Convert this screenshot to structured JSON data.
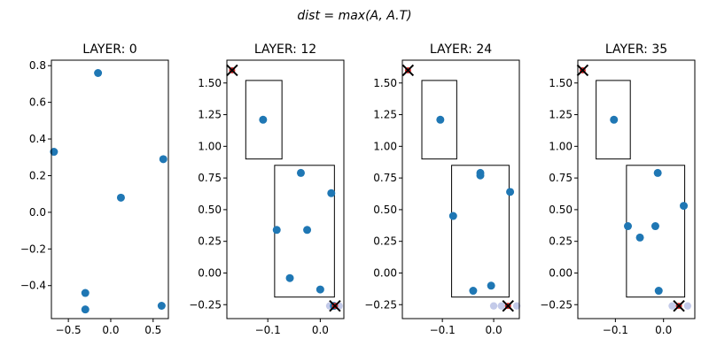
{
  "suptitle": "dist = max(A, A.T)",
  "chart_data": [
    {
      "type": "scatter",
      "title": "LAYER: 0",
      "xlim": [
        -0.7,
        0.68
      ],
      "ylim": [
        -0.58,
        0.83
      ],
      "xticks": [
        -0.5,
        0.0,
        0.5
      ],
      "yticks": [
        -0.4,
        -0.2,
        0.0,
        0.2,
        0.4,
        0.6,
        0.8
      ],
      "xtick_labels": [
        "−0.5",
        "0.0",
        "0.5"
      ],
      "ytick_labels": [
        "−0.4",
        "−0.2",
        "0.0",
        "0.2",
        "0.4",
        "0.6",
        "0.8"
      ],
      "points": [
        [
          -0.15,
          0.76
        ],
        [
          -0.67,
          0.33
        ],
        [
          0.62,
          0.29
        ],
        [
          0.12,
          0.08
        ],
        [
          -0.3,
          -0.44
        ],
        [
          -0.3,
          -0.53
        ],
        [
          0.6,
          -0.51
        ]
      ],
      "faint_points": [],
      "x_markers": [],
      "boxes": []
    },
    {
      "type": "scatter",
      "title": "LAYER: 12",
      "xlim": [
        -0.178,
        0.045
      ],
      "ylim": [
        -0.36,
        1.68
      ],
      "xticks": [
        -0.1,
        0.0
      ],
      "yticks": [
        -0.25,
        0.0,
        0.25,
        0.5,
        0.75,
        1.0,
        1.25,
        1.5
      ],
      "xtick_labels": [
        "−0.1",
        "0.0"
      ],
      "ytick_labels": [
        "−0.25",
        "0.00",
        "0.25",
        "0.50",
        "0.75",
        "1.00",
        "1.25",
        "1.50"
      ],
      "points": [
        [
          -0.109,
          1.21
        ],
        [
          -0.037,
          0.79
        ],
        [
          0.021,
          0.63
        ],
        [
          -0.083,
          0.34
        ],
        [
          -0.025,
          0.34
        ],
        [
          -0.058,
          -0.04
        ],
        [
          0.0,
          -0.13
        ],
        [
          0.026,
          -0.26
        ]
      ],
      "faint_points": [
        [
          0.018,
          -0.26
        ],
        [
          0.036,
          -0.26
        ]
      ],
      "x_markers": [
        [
          -0.168,
          1.6
        ],
        [
          0.028,
          -0.26
        ]
      ],
      "boxes": [
        [
          -0.142,
          0.9,
          -0.073,
          1.52
        ],
        [
          -0.087,
          -0.19,
          0.027,
          0.85
        ]
      ]
    },
    {
      "type": "scatter",
      "title": "LAYER: 24",
      "xlim": [
        -0.178,
        0.05
      ],
      "ylim": [
        -0.36,
        1.68
      ],
      "xticks": [
        -0.1,
        0.0
      ],
      "yticks": [
        -0.25,
        0.0,
        0.25,
        0.5,
        0.75,
        1.0,
        1.25,
        1.5
      ],
      "xtick_labels": [
        "−0.1",
        "0.0"
      ],
      "ytick_labels": [
        "−0.25",
        "0.00",
        "0.25",
        "0.50",
        "0.75",
        "1.00",
        "1.25",
        "1.50"
      ],
      "points": [
        [
          -0.104,
          1.21
        ],
        [
          -0.026,
          0.79
        ],
        [
          -0.026,
          0.77
        ],
        [
          0.032,
          0.64
        ],
        [
          -0.079,
          0.45
        ],
        [
          -0.04,
          -0.14
        ],
        [
          -0.005,
          -0.1
        ]
      ],
      "faint_points": [
        [
          0.0,
          -0.26
        ],
        [
          0.015,
          -0.26
        ],
        [
          0.045,
          -0.26
        ]
      ],
      "x_markers": [
        [
          -0.167,
          1.6
        ],
        [
          0.028,
          -0.26
        ]
      ],
      "boxes": [
        [
          -0.14,
          0.9,
          -0.072,
          1.52
        ],
        [
          -0.082,
          -0.19,
          0.03,
          0.85
        ]
      ]
    },
    {
      "type": "scatter",
      "title": "LAYER: 35",
      "xlim": [
        -0.178,
        0.065
      ],
      "ylim": [
        -0.36,
        1.68
      ],
      "xticks": [
        -0.1,
        0.0
      ],
      "yticks": [
        -0.25,
        0.0,
        0.25,
        0.5,
        0.75,
        1.0,
        1.25,
        1.5
      ],
      "xtick_labels": [
        "−0.1",
        "0.0"
      ],
      "ytick_labels": [
        "−0.25",
        "0.00",
        "0.25",
        "0.50",
        "0.75",
        "1.00",
        "1.25",
        "1.50"
      ],
      "points": [
        [
          -0.103,
          1.21
        ],
        [
          -0.012,
          0.79
        ],
        [
          0.042,
          0.53
        ],
        [
          -0.074,
          0.37
        ],
        [
          -0.017,
          0.37
        ],
        [
          -0.049,
          0.28
        ],
        [
          -0.01,
          -0.14
        ]
      ],
      "faint_points": [
        [
          0.018,
          -0.26
        ],
        [
          0.05,
          -0.26
        ]
      ],
      "x_markers": [
        [
          -0.168,
          1.6
        ],
        [
          0.032,
          -0.26
        ]
      ],
      "boxes": [
        [
          -0.14,
          0.9,
          -0.069,
          1.52
        ],
        [
          -0.077,
          -0.19,
          0.044,
          0.85
        ]
      ]
    }
  ],
  "colors": {
    "point": "#1f77b4",
    "faint_point": "#a9b4e0",
    "marker_x": "#000000",
    "marker_x_fill": "#d62728",
    "box": "#000000",
    "axis": "#000000"
  }
}
